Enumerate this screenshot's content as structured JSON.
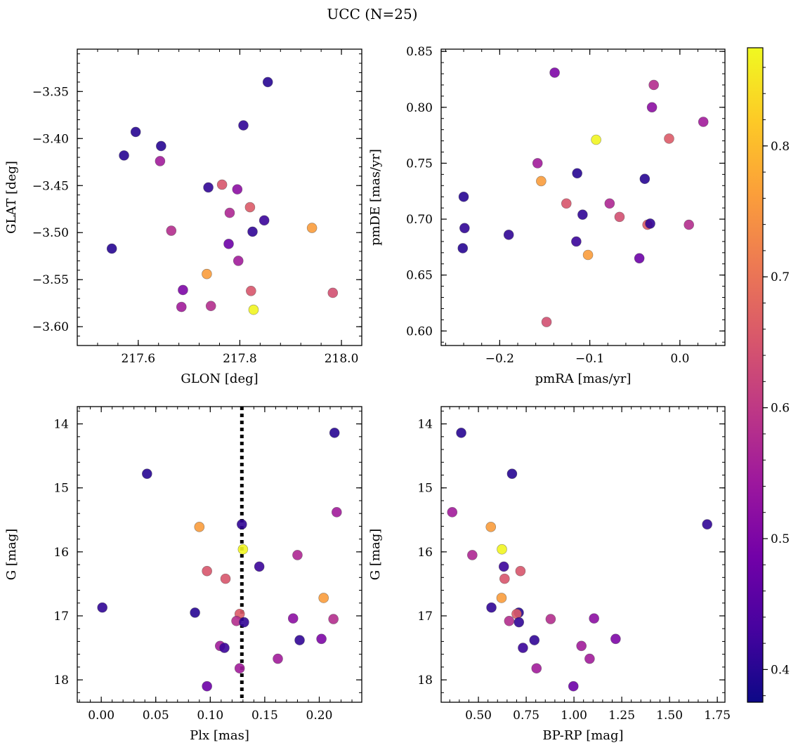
{
  "figure": {
    "title": "UCC (N=25)"
  },
  "colormap": {
    "name": "plasma",
    "range": [
      0.375,
      0.875
    ],
    "ticks": [
      "0.4",
      "0.5",
      "0.6",
      "0.7",
      "0.8"
    ],
    "tick_values": [
      0.4,
      0.5,
      0.6,
      0.7,
      0.8
    ],
    "stops": [
      "#0d0887",
      "#46039f",
      "#7201a8",
      "#9c179e",
      "#bd3786",
      "#d8576b",
      "#ed7953",
      "#fb9f3a",
      "#fdca26",
      "#f0f921"
    ]
  },
  "chart_data": [
    {
      "type": "scatter",
      "id": "glon-glat",
      "xlabel": "GLON [deg]",
      "ylabel": "GLAT [deg]",
      "xlim": [
        217.48,
        218.04
      ],
      "ylim": [
        -3.62,
        -3.305
      ],
      "y_inverted": false,
      "xticks": [
        217.6,
        217.8,
        218.0
      ],
      "xtick_labels": [
        "217.6",
        "217.8",
        "218.0"
      ],
      "yticks": [
        -3.35,
        -3.4,
        -3.45,
        -3.5,
        -3.55,
        -3.6
      ],
      "ytick_labels": [
        "−3.35",
        "−3.40",
        "−3.45",
        "−3.50",
        "−3.55",
        "−3.60"
      ],
      "x_minor_step": 0.04,
      "y_minor_step": 0.01,
      "points": [
        {
          "x": 217.855,
          "y": -3.34,
          "c": 0.4
        },
        {
          "x": 217.595,
          "y": -3.393,
          "c": 0.4
        },
        {
          "x": 217.807,
          "y": -3.386,
          "c": 0.41
        },
        {
          "x": 217.645,
          "y": -3.408,
          "c": 0.4
        },
        {
          "x": 217.572,
          "y": -3.418,
          "c": 0.4
        },
        {
          "x": 217.643,
          "y": -3.424,
          "c": 0.55
        },
        {
          "x": 217.765,
          "y": -3.449,
          "c": 0.65
        },
        {
          "x": 217.738,
          "y": -3.452,
          "c": 0.41
        },
        {
          "x": 217.795,
          "y": -3.454,
          "c": 0.52
        },
        {
          "x": 217.82,
          "y": -3.473,
          "c": 0.66
        },
        {
          "x": 217.78,
          "y": -3.479,
          "c": 0.57
        },
        {
          "x": 217.848,
          "y": -3.487,
          "c": 0.42
        },
        {
          "x": 217.942,
          "y": -3.495,
          "c": 0.76
        },
        {
          "x": 217.665,
          "y": -3.498,
          "c": 0.58
        },
        {
          "x": 217.825,
          "y": -3.499,
          "c": 0.41
        },
        {
          "x": 217.548,
          "y": -3.517,
          "c": 0.4
        },
        {
          "x": 217.778,
          "y": -3.512,
          "c": 0.48
        },
        {
          "x": 217.797,
          "y": -3.53,
          "c": 0.55
        },
        {
          "x": 217.735,
          "y": -3.544,
          "c": 0.76
        },
        {
          "x": 217.688,
          "y": -3.561,
          "c": 0.5
        },
        {
          "x": 217.822,
          "y": -3.562,
          "c": 0.65
        },
        {
          "x": 217.983,
          "y": -3.564,
          "c": 0.64
        },
        {
          "x": 217.685,
          "y": -3.579,
          "c": 0.55
        },
        {
          "x": 217.743,
          "y": -3.578,
          "c": 0.58
        },
        {
          "x": 217.827,
          "y": -3.582,
          "c": 0.87
        }
      ]
    },
    {
      "type": "scatter",
      "id": "pmra-pmde",
      "xlabel": "pmRA [mas/yr]",
      "ylabel": "pmDE [mas/yr]",
      "xlim": [
        -0.265,
        0.05
      ],
      "ylim": [
        0.587,
        0.852
      ],
      "y_inverted": false,
      "xticks": [
        -0.2,
        -0.1,
        0.0
      ],
      "xtick_labels": [
        "−0.2",
        "−0.1",
        "0.0"
      ],
      "yticks": [
        0.6,
        0.65,
        0.7,
        0.75,
        0.8,
        0.85
      ],
      "ytick_labels": [
        "0.60",
        "0.65",
        "0.70",
        "0.75",
        "0.80",
        "0.85"
      ],
      "x_minor_step": 0.02,
      "y_minor_step": 0.01,
      "points": [
        {
          "x": -0.139,
          "y": 0.831,
          "c": 0.5
        },
        {
          "x": -0.029,
          "y": 0.82,
          "c": 0.58
        },
        {
          "x": -0.031,
          "y": 0.8,
          "c": 0.52
        },
        {
          "x": 0.026,
          "y": 0.787,
          "c": 0.55
        },
        {
          "x": -0.012,
          "y": 0.772,
          "c": 0.66
        },
        {
          "x": -0.093,
          "y": 0.771,
          "c": 0.87
        },
        {
          "x": -0.158,
          "y": 0.75,
          "c": 0.55
        },
        {
          "x": -0.114,
          "y": 0.741,
          "c": 0.4
        },
        {
          "x": -0.039,
          "y": 0.736,
          "c": 0.4
        },
        {
          "x": -0.154,
          "y": 0.734,
          "c": 0.76
        },
        {
          "x": -0.24,
          "y": 0.72,
          "c": 0.4
        },
        {
          "x": -0.126,
          "y": 0.714,
          "c": 0.65
        },
        {
          "x": -0.078,
          "y": 0.714,
          "c": 0.57
        },
        {
          "x": -0.108,
          "y": 0.704,
          "c": 0.41
        },
        {
          "x": -0.067,
          "y": 0.702,
          "c": 0.64
        },
        {
          "x": -0.036,
          "y": 0.695,
          "c": 0.66
        },
        {
          "x": -0.033,
          "y": 0.696,
          "c": 0.41
        },
        {
          "x": 0.01,
          "y": 0.695,
          "c": 0.58
        },
        {
          "x": -0.239,
          "y": 0.692,
          "c": 0.41
        },
        {
          "x": -0.19,
          "y": 0.686,
          "c": 0.41
        },
        {
          "x": -0.115,
          "y": 0.68,
          "c": 0.42
        },
        {
          "x": -0.241,
          "y": 0.674,
          "c": 0.4
        },
        {
          "x": -0.102,
          "y": 0.668,
          "c": 0.76
        },
        {
          "x": -0.045,
          "y": 0.665,
          "c": 0.48
        },
        {
          "x": -0.148,
          "y": 0.608,
          "c": 0.64
        }
      ]
    },
    {
      "type": "scatter",
      "id": "plx-g",
      "xlabel": "Plx [mas]",
      "ylabel": "G [mag]",
      "xlim": [
        -0.022,
        0.239
      ],
      "ylim": [
        18.35,
        13.73
      ],
      "y_inverted": true,
      "xticks": [
        0.0,
        0.05,
        0.1,
        0.15,
        0.2
      ],
      "xtick_labels": [
        "0.00",
        "0.05",
        "0.10",
        "0.15",
        "0.20"
      ],
      "yticks": [
        14,
        15,
        16,
        17,
        18
      ],
      "ytick_labels": [
        "14",
        "15",
        "16",
        "17",
        "18"
      ],
      "x_minor_step": 0.01,
      "y_minor_step": 0.2,
      "vline": {
        "x": 0.129,
        "style": "dotted",
        "color": "#000000"
      },
      "points": [
        {
          "x": 0.214,
          "y": 14.14,
          "c": 0.4
        },
        {
          "x": 0.042,
          "y": 14.78,
          "c": 0.4
        },
        {
          "x": 0.216,
          "y": 15.38,
          "c": 0.55
        },
        {
          "x": 0.129,
          "y": 15.57,
          "c": 0.41
        },
        {
          "x": 0.09,
          "y": 15.61,
          "c": 0.76
        },
        {
          "x": 0.13,
          "y": 15.96,
          "c": 0.87
        },
        {
          "x": 0.18,
          "y": 16.05,
          "c": 0.57
        },
        {
          "x": 0.145,
          "y": 16.23,
          "c": 0.42
        },
        {
          "x": 0.097,
          "y": 16.3,
          "c": 0.65
        },
        {
          "x": 0.114,
          "y": 16.42,
          "c": 0.65
        },
        {
          "x": 0.204,
          "y": 16.72,
          "c": 0.76
        },
        {
          "x": 0.001,
          "y": 16.87,
          "c": 0.41
        },
        {
          "x": 0.086,
          "y": 16.95,
          "c": 0.4
        },
        {
          "x": 0.127,
          "y": 16.97,
          "c": 0.66
        },
        {
          "x": 0.176,
          "y": 17.04,
          "c": 0.52
        },
        {
          "x": 0.213,
          "y": 17.05,
          "c": 0.58
        },
        {
          "x": 0.124,
          "y": 17.08,
          "c": 0.58
        },
        {
          "x": 0.131,
          "y": 17.1,
          "c": 0.41
        },
        {
          "x": 0.202,
          "y": 17.36,
          "c": 0.5
        },
        {
          "x": 0.182,
          "y": 17.38,
          "c": 0.41
        },
        {
          "x": 0.109,
          "y": 17.47,
          "c": 0.55
        },
        {
          "x": 0.113,
          "y": 17.5,
          "c": 0.42
        },
        {
          "x": 0.162,
          "y": 17.67,
          "c": 0.55
        },
        {
          "x": 0.127,
          "y": 17.82,
          "c": 0.55
        },
        {
          "x": 0.097,
          "y": 18.1,
          "c": 0.48
        }
      ]
    },
    {
      "type": "scatter",
      "id": "bprp-g",
      "xlabel": "BP-RP [mag]",
      "ylabel": "G [mag]",
      "xlim": [
        0.305,
        1.79
      ],
      "ylim": [
        18.35,
        13.73
      ],
      "y_inverted": true,
      "xticks": [
        0.5,
        0.75,
        1.0,
        1.25,
        1.5,
        1.75
      ],
      "xtick_labels": [
        "0.50",
        "0.75",
        "1.00",
        "1.25",
        "1.50",
        "1.75"
      ],
      "yticks": [
        14,
        15,
        16,
        17,
        18
      ],
      "ytick_labels": [
        "14",
        "15",
        "16",
        "17",
        "18"
      ],
      "x_minor_step": 0.05,
      "y_minor_step": 0.2,
      "points": [
        {
          "x": 0.41,
          "y": 14.14,
          "c": 0.4
        },
        {
          "x": 0.676,
          "y": 14.78,
          "c": 0.4
        },
        {
          "x": 0.363,
          "y": 15.38,
          "c": 0.55
        },
        {
          "x": 1.697,
          "y": 15.57,
          "c": 0.41
        },
        {
          "x": 0.565,
          "y": 15.61,
          "c": 0.76
        },
        {
          "x": 0.623,
          "y": 15.96,
          "c": 0.87
        },
        {
          "x": 0.468,
          "y": 16.05,
          "c": 0.57
        },
        {
          "x": 0.633,
          "y": 16.23,
          "c": 0.42
        },
        {
          "x": 0.72,
          "y": 16.3,
          "c": 0.65
        },
        {
          "x": 0.637,
          "y": 16.42,
          "c": 0.65
        },
        {
          "x": 0.621,
          "y": 16.72,
          "c": 0.76
        },
        {
          "x": 0.568,
          "y": 16.87,
          "c": 0.41
        },
        {
          "x": 0.711,
          "y": 16.95,
          "c": 0.4
        },
        {
          "x": 0.7,
          "y": 16.97,
          "c": 0.66
        },
        {
          "x": 1.105,
          "y": 17.04,
          "c": 0.52
        },
        {
          "x": 0.878,
          "y": 17.05,
          "c": 0.58
        },
        {
          "x": 0.661,
          "y": 17.08,
          "c": 0.58
        },
        {
          "x": 0.712,
          "y": 17.1,
          "c": 0.41
        },
        {
          "x": 1.218,
          "y": 17.36,
          "c": 0.5
        },
        {
          "x": 0.793,
          "y": 17.38,
          "c": 0.41
        },
        {
          "x": 1.039,
          "y": 17.47,
          "c": 0.55
        },
        {
          "x": 0.733,
          "y": 17.5,
          "c": 0.42
        },
        {
          "x": 1.082,
          "y": 17.67,
          "c": 0.55
        },
        {
          "x": 0.804,
          "y": 17.82,
          "c": 0.55
        },
        {
          "x": 0.997,
          "y": 18.1,
          "c": 0.48
        }
      ]
    }
  ]
}
